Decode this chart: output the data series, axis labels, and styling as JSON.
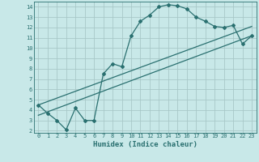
{
  "title": "",
  "xlabel": "Humidex (Indice chaleur)",
  "ylabel": "",
  "background_color": "#c8e8e8",
  "grid_color": "#a8c8c8",
  "line_color": "#2a7070",
  "xlim": [
    -0.5,
    23.5
  ],
  "ylim": [
    1.8,
    14.5
  ],
  "xticks": [
    0,
    1,
    2,
    3,
    4,
    5,
    6,
    7,
    8,
    9,
    10,
    11,
    12,
    13,
    14,
    15,
    16,
    17,
    18,
    19,
    20,
    21,
    22,
    23
  ],
  "yticks": [
    2,
    3,
    4,
    5,
    6,
    7,
    8,
    9,
    10,
    11,
    12,
    13,
    14
  ],
  "curve1_x": [
    0,
    1,
    2,
    3,
    4,
    5,
    6,
    7,
    8,
    9,
    10,
    11,
    12,
    13,
    14,
    15,
    16,
    17,
    18,
    19,
    20,
    21,
    22,
    23
  ],
  "curve1_y": [
    4.5,
    3.7,
    3.0,
    2.1,
    4.2,
    3.0,
    3.0,
    7.5,
    8.5,
    8.2,
    11.2,
    12.6,
    13.2,
    14.0,
    14.2,
    14.1,
    13.8,
    13.0,
    12.6,
    12.1,
    12.0,
    12.2,
    10.4,
    11.2
  ],
  "line2_x": [
    0,
    23
  ],
  "line2_y": [
    3.5,
    11.2
  ],
  "line3_x": [
    0,
    23
  ],
  "line3_y": [
    4.5,
    12.1
  ],
  "marker": "D",
  "markersize": 2.0,
  "linewidth": 0.9,
  "tick_fontsize": 5.0,
  "xlabel_fontsize": 6.5
}
